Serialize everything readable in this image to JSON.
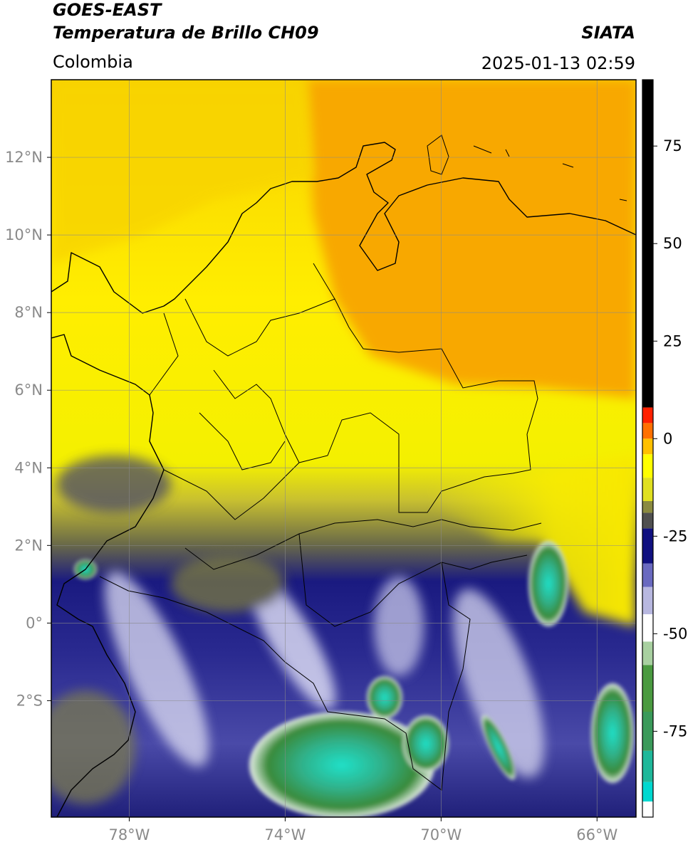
{
  "header": {
    "title": "GOES-EAST",
    "subtitle": "Temperatura de Brillo CH09",
    "source": "SIATA",
    "region": "Colombia",
    "datetime": "2025-01-13 02:59"
  },
  "map": {
    "xlim": [
      -80,
      -65
    ],
    "ylim": [
      -5,
      14
    ],
    "xticks": [
      {
        "value": -78,
        "label": "78°W"
      },
      {
        "value": -74,
        "label": "74°W"
      },
      {
        "value": -70,
        "label": "70°W"
      },
      {
        "value": -66,
        "label": "66°W"
      }
    ],
    "yticks": [
      {
        "value": 12,
        "label": "12°N"
      },
      {
        "value": 10,
        "label": "10°N"
      },
      {
        "value": 8,
        "label": "8°N"
      },
      {
        "value": 6,
        "label": "6°N"
      },
      {
        "value": 4,
        "label": "4°N"
      },
      {
        "value": 2,
        "label": "2°N"
      },
      {
        "value": 0,
        "label": "0°"
      },
      {
        "value": -2,
        "label": "2°S"
      }
    ],
    "grid": true
  },
  "colorbar": {
    "lim": [
      -97,
      92
    ],
    "ticks": [
      75,
      50,
      25,
      0,
      -25,
      -50,
      -75
    ],
    "segments": [
      {
        "range": [
          -97,
          -93
        ],
        "color": "#ffffff"
      },
      {
        "range": [
          -93,
          -88
        ],
        "color": "#00d8d0"
      },
      {
        "range": [
          -88,
          -80
        ],
        "color": "#1fb89a"
      },
      {
        "range": [
          -80,
          -70
        ],
        "color": "#3a9a5a"
      },
      {
        "range": [
          -70,
          -58
        ],
        "color": "#4a9a40"
      },
      {
        "range": [
          -58,
          -52
        ],
        "color": "#a8d0a0"
      },
      {
        "range": [
          -52,
          -45
        ],
        "color": "#ffffff"
      },
      {
        "range": [
          -45,
          -38
        ],
        "color": "#b8b8e0"
      },
      {
        "range": [
          -38,
          -32
        ],
        "color": "#6a6ac0"
      },
      {
        "range": [
          -32,
          -23
        ],
        "color": "#101080"
      },
      {
        "range": [
          -23,
          -19
        ],
        "color": "#505050"
      },
      {
        "range": [
          -19,
          -16
        ],
        "color": "#8a8a40"
      },
      {
        "range": [
          -16,
          -10
        ],
        "color": "#e0e020"
      },
      {
        "range": [
          -10,
          -4
        ],
        "color": "#ffff00"
      },
      {
        "range": [
          -4,
          0
        ],
        "color": "#ffc000"
      },
      {
        "range": [
          0,
          4
        ],
        "color": "#ff7000"
      },
      {
        "range": [
          4,
          8
        ],
        "color": "#ff2000"
      },
      {
        "range": [
          8,
          92
        ],
        "color": "#000000"
      }
    ]
  }
}
